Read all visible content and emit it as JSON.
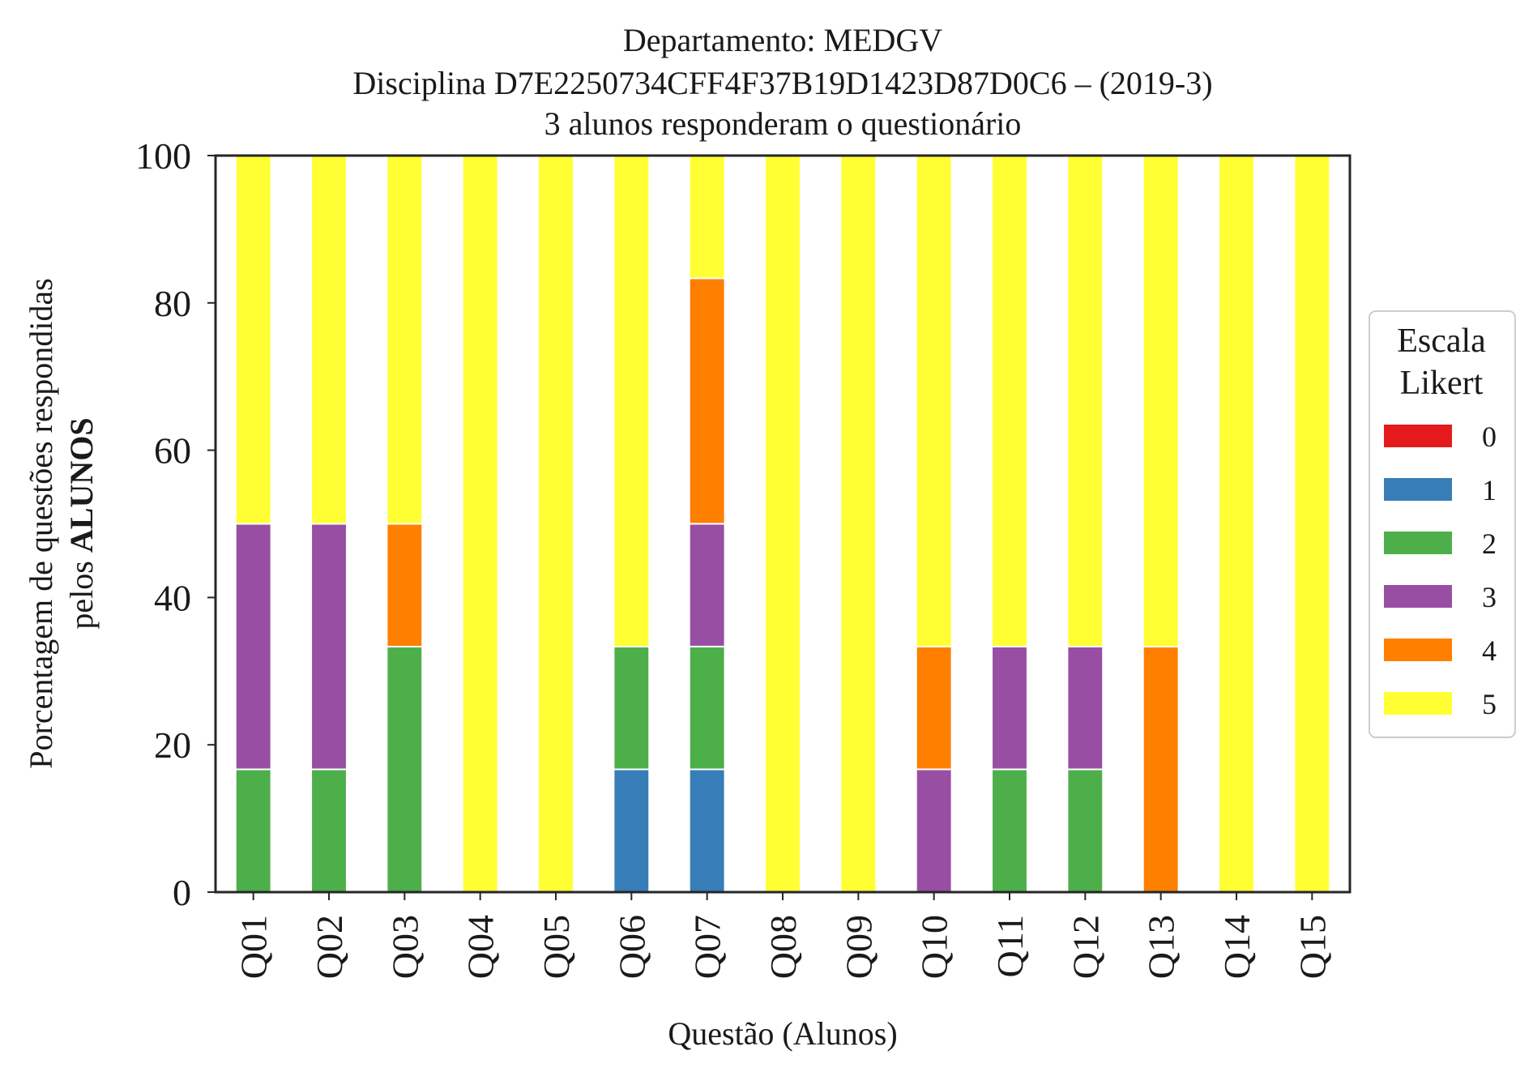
{
  "chart_data": {
    "type": "bar",
    "stacked": true,
    "title_lines": [
      "Departamento: MEDGV",
      "Disciplina D7E2250734CFF4F37B19D1423D87D0C6 – (2019-3)",
      "3 alunos responderam o questionário"
    ],
    "xlabel": "Questão (Alunos)",
    "ylabel_line1": "Porcentagem de questões respondidas",
    "ylabel_line2_prefix": "pelos ",
    "ylabel_line2_bold": "ALUNOS",
    "ylim": [
      0,
      100
    ],
    "yticks": [
      "0",
      "20",
      "40",
      "60",
      "80",
      "100"
    ],
    "grid": false,
    "legend_position": "right",
    "legend_title_lines": [
      "Escala",
      "Likert"
    ],
    "categories": [
      "Q01",
      "Q02",
      "Q03",
      "Q04",
      "Q05",
      "Q06",
      "Q07",
      "Q08",
      "Q09",
      "Q10",
      "Q11",
      "Q12",
      "Q13",
      "Q14",
      "Q15"
    ],
    "series": [
      {
        "name": "0",
        "color": "#e41a1c",
        "values": [
          0,
          0,
          0,
          0,
          0,
          0,
          0,
          0,
          0,
          0,
          0,
          0,
          0,
          0,
          0
        ]
      },
      {
        "name": "1",
        "color": "#377eb8",
        "values": [
          0,
          0,
          0,
          0,
          0,
          16.67,
          16.67,
          0,
          0,
          0,
          0,
          0,
          0,
          0,
          0
        ]
      },
      {
        "name": "2",
        "color": "#4daf4a",
        "values": [
          16.67,
          16.67,
          33.33,
          0,
          0,
          16.67,
          16.67,
          0,
          0,
          0,
          16.67,
          16.67,
          0,
          0,
          0
        ]
      },
      {
        "name": "3",
        "color": "#984ea3",
        "values": [
          33.33,
          33.33,
          0,
          0,
          0,
          0,
          16.67,
          0,
          0,
          16.67,
          16.67,
          16.67,
          0,
          0,
          0
        ]
      },
      {
        "name": "4",
        "color": "#ff7f00",
        "values": [
          0,
          0,
          16.67,
          0,
          0,
          0,
          33.33,
          0,
          0,
          16.67,
          0,
          0,
          33.33,
          0,
          0
        ]
      },
      {
        "name": "5",
        "color": "#ffff33",
        "values": [
          50,
          50,
          50,
          100,
          100,
          66.67,
          16.67,
          100,
          100,
          66.67,
          66.67,
          66.67,
          66.67,
          100,
          100
        ]
      }
    ]
  }
}
